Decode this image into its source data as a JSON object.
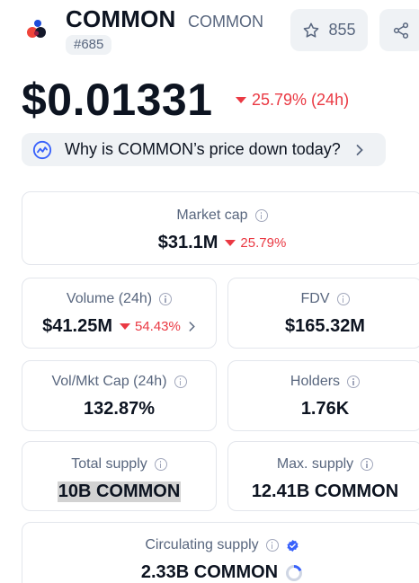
{
  "header": {
    "name": "COMMON",
    "symbol": "COMMON",
    "rank": "#685",
    "watchlist_count": "855"
  },
  "price": {
    "value": "$0.01331",
    "change": "25.79% (24h)",
    "direction": "down",
    "down_color": "#ea3943"
  },
  "why_banner": {
    "text": "Why is COMMON’s price down today?"
  },
  "stats": {
    "market_cap": {
      "label": "Market cap",
      "value": "$31.1M",
      "change": "25.79%"
    },
    "volume": {
      "label": "Volume (24h)",
      "value": "$41.25M",
      "change": "54.43%"
    },
    "fdv": {
      "label": "FDV",
      "value": "$165.32M"
    },
    "vol_mkt_cap": {
      "label": "Vol/Mkt Cap (24h)",
      "value": "132.87%"
    },
    "holders": {
      "label": "Holders",
      "value": "1.76K"
    },
    "total_supply": {
      "label": "Total supply",
      "value": "10B COMMON"
    },
    "max_supply": {
      "label": "Max. supply",
      "value": "12.41B COMMON"
    },
    "circulating_supply": {
      "label": "Circulating supply",
      "value": "2.33B COMMON",
      "circulating_ratio": 0.19
    }
  },
  "colors": {
    "accent_blue": "#3861fb",
    "muted_text": "#58667e",
    "chip_bg": "#eff2f5"
  }
}
